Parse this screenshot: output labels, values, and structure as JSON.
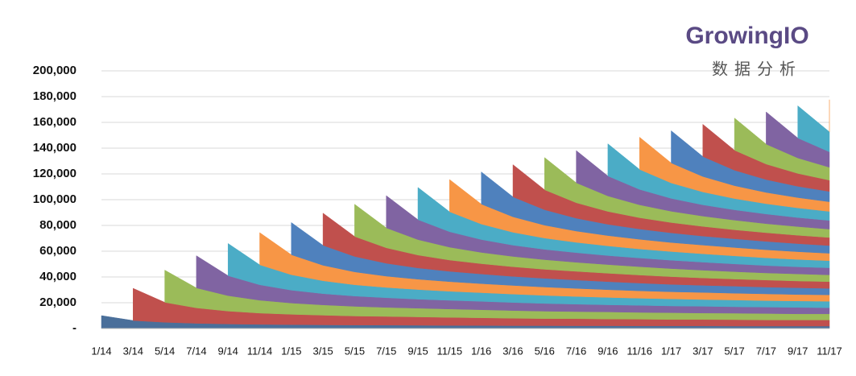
{
  "logo": {
    "name": "GrowingIO",
    "tagline": "数据分析"
  },
  "chart_data": {
    "type": "stacked-area",
    "categories": [
      "1/14",
      "3/14",
      "5/14",
      "7/14",
      "9/14",
      "11/14",
      "1/15",
      "3/15",
      "5/15",
      "7/15",
      "9/15",
      "11/15",
      "1/16",
      "3/16",
      "5/16",
      "7/16",
      "9/16",
      "11/16",
      "1/17",
      "3/17",
      "5/17",
      "7/17",
      "9/17",
      "11/17"
    ],
    "ylim": [
      0,
      200000
    ],
    "yticks": [
      {
        "value": 0,
        "label": "-"
      },
      {
        "value": 20000,
        "label": "20,000"
      },
      {
        "value": 40000,
        "label": "40,000"
      },
      {
        "value": 60000,
        "label": "60,000"
      },
      {
        "value": 80000,
        "label": "80,000"
      },
      {
        "value": 100000,
        "label": "100,000"
      },
      {
        "value": 120000,
        "label": "120,000"
      },
      {
        "value": 140000,
        "label": "140,000"
      },
      {
        "value": 160000,
        "label": "160,000"
      },
      {
        "value": 180000,
        "label": "180,000"
      },
      {
        "value": 200000,
        "label": "200,000"
      }
    ],
    "grid": true,
    "series": [
      {
        "color": "#4a6f9a",
        "values": [
          10000,
          6200,
          4800,
          4000,
          3500,
          3200,
          3000,
          2800,
          2700,
          2600,
          2500,
          2400,
          2300,
          2200,
          2200,
          2100,
          2100,
          2000,
          2000,
          2000,
          1900,
          1900,
          1900,
          1900
        ]
      },
      {
        "color": "#c0504d",
        "values": [
          null,
          25000,
          15500,
          12000,
          10000,
          8750,
          8000,
          7500,
          7000,
          6750,
          6500,
          6250,
          6000,
          5750,
          5500,
          5500,
          5250,
          5250,
          5000,
          5000,
          5000,
          4750,
          4750,
          4750
        ]
      },
      {
        "color": "#9bbb59",
        "values": [
          null,
          null,
          25000,
          15500,
          12000,
          10000,
          8750,
          8000,
          7500,
          7000,
          6750,
          6500,
          6250,
          6000,
          5750,
          5500,
          5500,
          5250,
          5250,
          5000,
          5000,
          5000,
          4750,
          4750
        ]
      },
      {
        "color": "#8064a2",
        "values": [
          null,
          null,
          null,
          25000,
          15500,
          12000,
          10000,
          8750,
          8000,
          7500,
          7000,
          6750,
          6500,
          6250,
          6000,
          5750,
          5500,
          5500,
          5250,
          5250,
          5000,
          5000,
          5000,
          4750
        ]
      },
      {
        "color": "#4bacc6",
        "values": [
          null,
          null,
          null,
          null,
          25000,
          15500,
          12000,
          10000,
          8750,
          8000,
          7500,
          7000,
          6750,
          6500,
          6250,
          6000,
          5750,
          5500,
          5500,
          5250,
          5250,
          5000,
          5000,
          5000
        ]
      },
      {
        "color": "#f79646",
        "values": [
          null,
          null,
          null,
          null,
          null,
          25000,
          15500,
          12000,
          10000,
          8750,
          8000,
          7500,
          7000,
          6750,
          6500,
          6250,
          6000,
          5750,
          5500,
          5500,
          5250,
          5250,
          5000,
          5000
        ]
      },
      {
        "color": "#4f81bd",
        "values": [
          null,
          null,
          null,
          null,
          null,
          null,
          25000,
          15500,
          12000,
          10000,
          8750,
          8000,
          7500,
          7000,
          6750,
          6500,
          6250,
          6000,
          5750,
          5500,
          5500,
          5250,
          5250,
          5000
        ]
      },
      {
        "color": "#c0504d",
        "values": [
          null,
          null,
          null,
          null,
          null,
          null,
          null,
          25000,
          15500,
          12000,
          10000,
          8750,
          8000,
          7500,
          7000,
          6750,
          6500,
          6250,
          6000,
          5750,
          5500,
          5500,
          5250,
          5250
        ]
      },
      {
        "color": "#9bbb59",
        "values": [
          null,
          null,
          null,
          null,
          null,
          null,
          null,
          null,
          25000,
          15500,
          12000,
          10000,
          8750,
          8000,
          7500,
          7000,
          6750,
          6500,
          6250,
          6000,
          5750,
          5500,
          5500,
          5250
        ]
      },
      {
        "color": "#8064a2",
        "values": [
          null,
          null,
          null,
          null,
          null,
          null,
          null,
          null,
          null,
          25000,
          15500,
          12000,
          10000,
          8750,
          8000,
          7500,
          7000,
          6750,
          6500,
          6250,
          6000,
          5750,
          5500,
          5500
        ]
      },
      {
        "color": "#4bacc6",
        "values": [
          null,
          null,
          null,
          null,
          null,
          null,
          null,
          null,
          null,
          null,
          25000,
          15500,
          12000,
          10000,
          8750,
          8000,
          7500,
          7000,
          6750,
          6500,
          6250,
          6000,
          5750,
          5500
        ]
      },
      {
        "color": "#f79646",
        "values": [
          null,
          null,
          null,
          null,
          null,
          null,
          null,
          null,
          null,
          null,
          null,
          25000,
          15500,
          12000,
          10000,
          8750,
          8000,
          7500,
          7000,
          6750,
          6500,
          6250,
          6000,
          5750
        ]
      },
      {
        "color": "#4f81bd",
        "values": [
          null,
          null,
          null,
          null,
          null,
          null,
          null,
          null,
          null,
          null,
          null,
          null,
          25000,
          15500,
          12000,
          10000,
          8750,
          8000,
          7500,
          7000,
          6750,
          6500,
          6250,
          6000
        ]
      },
      {
        "color": "#c0504d",
        "values": [
          null,
          null,
          null,
          null,
          null,
          null,
          null,
          null,
          null,
          null,
          null,
          null,
          null,
          25000,
          15500,
          12000,
          10000,
          8750,
          8000,
          7500,
          7000,
          6750,
          6500,
          6250
        ]
      },
      {
        "color": "#9bbb59",
        "values": [
          null,
          null,
          null,
          null,
          null,
          null,
          null,
          null,
          null,
          null,
          null,
          null,
          null,
          null,
          25000,
          15500,
          12000,
          10000,
          8750,
          8000,
          7500,
          7000,
          6750,
          6500
        ]
      },
      {
        "color": "#8064a2",
        "values": [
          null,
          null,
          null,
          null,
          null,
          null,
          null,
          null,
          null,
          null,
          null,
          null,
          null,
          null,
          null,
          25000,
          15500,
          12000,
          10000,
          8750,
          8000,
          7500,
          7000,
          6750
        ]
      },
      {
        "color": "#4bacc6",
        "values": [
          null,
          null,
          null,
          null,
          null,
          null,
          null,
          null,
          null,
          null,
          null,
          null,
          null,
          null,
          null,
          null,
          25000,
          15500,
          12000,
          10000,
          8750,
          8000,
          7500,
          7000
        ]
      },
      {
        "color": "#f79646",
        "values": [
          null,
          null,
          null,
          null,
          null,
          null,
          null,
          null,
          null,
          null,
          null,
          null,
          null,
          null,
          null,
          null,
          null,
          25000,
          15500,
          12000,
          10000,
          8750,
          8000,
          7500
        ]
      },
      {
        "color": "#4f81bd",
        "values": [
          null,
          null,
          null,
          null,
          null,
          null,
          null,
          null,
          null,
          null,
          null,
          null,
          null,
          null,
          null,
          null,
          null,
          null,
          25000,
          15500,
          12000,
          10000,
          8750,
          8000
        ]
      },
      {
        "color": "#c0504d",
        "values": [
          null,
          null,
          null,
          null,
          null,
          null,
          null,
          null,
          null,
          null,
          null,
          null,
          null,
          null,
          null,
          null,
          null,
          null,
          null,
          25000,
          15500,
          12000,
          10000,
          8750
        ]
      },
      {
        "color": "#9bbb59",
        "values": [
          null,
          null,
          null,
          null,
          null,
          null,
          null,
          null,
          null,
          null,
          null,
          null,
          null,
          null,
          null,
          null,
          null,
          null,
          null,
          null,
          25000,
          15500,
          12000,
          10000
        ]
      },
      {
        "color": "#8064a2",
        "values": [
          null,
          null,
          null,
          null,
          null,
          null,
          null,
          null,
          null,
          null,
          null,
          null,
          null,
          null,
          null,
          null,
          null,
          null,
          null,
          null,
          null,
          25000,
          15500,
          12000
        ]
      },
      {
        "color": "#4bacc6",
        "values": [
          null,
          null,
          null,
          null,
          null,
          null,
          null,
          null,
          null,
          null,
          null,
          null,
          null,
          null,
          null,
          null,
          null,
          null,
          null,
          null,
          null,
          null,
          25000,
          15500
        ]
      },
      {
        "color": "#f79646",
        "values": [
          null,
          null,
          null,
          null,
          null,
          null,
          null,
          null,
          null,
          null,
          null,
          null,
          null,
          null,
          null,
          null,
          null,
          null,
          null,
          null,
          null,
          null,
          null,
          25000
        ]
      }
    ]
  }
}
